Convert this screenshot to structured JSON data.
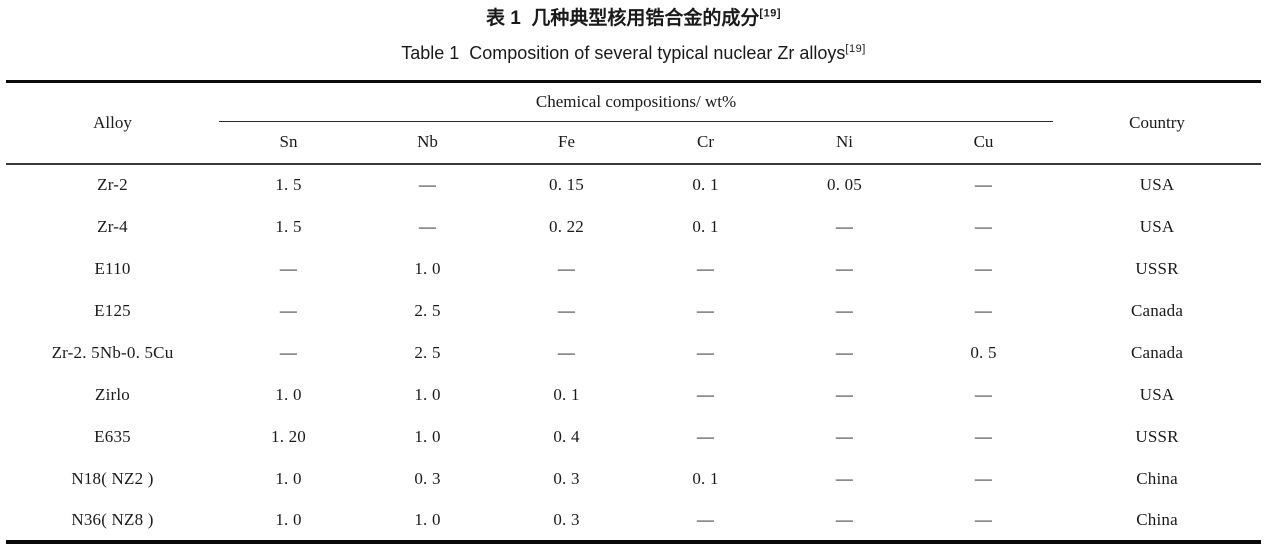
{
  "titles": {
    "zh": "表 1  几种典型核用锆合金的成分",
    "zh_ref": "[19]",
    "en": "Table 1  Composition of several typical nuclear Zr alloys",
    "en_ref": "[19]"
  },
  "table": {
    "header": {
      "alloy": "Alloy",
      "group": "Chemical compositions/ wt%",
      "country": "Country",
      "sub": [
        "Sn",
        "Nb",
        "Fe",
        "Cr",
        "Ni",
        "Cu"
      ]
    },
    "rows": [
      [
        "Zr-2",
        "1. 5",
        "—",
        "0. 15",
        "0. 1",
        "0. 05",
        "—",
        "USA"
      ],
      [
        "Zr-4",
        "1. 5",
        "—",
        "0. 22",
        "0. 1",
        "—",
        "—",
        "USA"
      ],
      [
        "E110",
        "—",
        "1. 0",
        "—",
        "—",
        "—",
        "—",
        "USSR"
      ],
      [
        "E125",
        "—",
        "2. 5",
        "—",
        "—",
        "—",
        "—",
        "Canada"
      ],
      [
        "Zr-2. 5Nb-0. 5Cu",
        "—",
        "2. 5",
        "—",
        "—",
        "—",
        "0. 5",
        "Canada"
      ],
      [
        "Zirlo",
        "1. 0",
        "1. 0",
        "0. 1",
        "—",
        "—",
        "—",
        "USA"
      ],
      [
        "E635",
        "1. 20",
        "1. 0",
        "0. 4",
        "—",
        "—",
        "—",
        "USSR"
      ],
      [
        "N18( NZ2 )",
        "1. 0",
        "0. 3",
        "0. 3",
        "0. 1",
        "—",
        "—",
        "China"
      ],
      [
        "N36( NZ8 )",
        "1. 0",
        "1. 0",
        "0. 3",
        "—",
        "—",
        "—",
        "China"
      ]
    ],
    "colors": {
      "text": "#1a1a1a",
      "rule_heavy": "#0a0a0a",
      "rule_light": "#3a3a3a"
    }
  }
}
